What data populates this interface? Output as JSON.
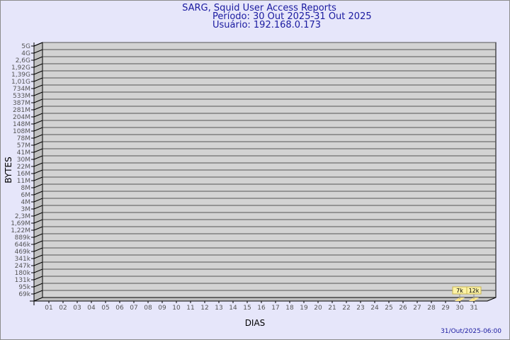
{
  "chart_data": {
    "type": "bar",
    "title": "SARG, Squid User Access Reports",
    "subtitle_lines": [
      "Período: 30 Out 2025-31 Out 2025",
      "Usuário: 192.168.0.173"
    ],
    "xlabel": "DIAS",
    "ylabel": "BYTES",
    "y_scale": "log",
    "y_tick_labels": [
      "5G",
      "4G",
      "2,6G",
      "1,92G",
      "1,39G",
      "1,01G",
      "734M",
      "533M",
      "387M",
      "281M",
      "204M",
      "148M",
      "108M",
      "78M",
      "57M",
      "41M",
      "30M",
      "22M",
      "16M",
      "11M",
      "8M",
      "6M",
      "4M",
      "3M",
      "2,3M",
      "1,69M",
      "1,22M",
      "889k",
      "646k",
      "469k",
      "341k",
      "247k",
      "180k",
      "131k",
      "95k",
      "69k"
    ],
    "categories": [
      "01",
      "02",
      "03",
      "04",
      "05",
      "06",
      "07",
      "08",
      "09",
      "10",
      "11",
      "12",
      "13",
      "14",
      "15",
      "16",
      "17",
      "18",
      "19",
      "20",
      "21",
      "22",
      "23",
      "24",
      "25",
      "26",
      "27",
      "28",
      "29",
      "30",
      "31"
    ],
    "values": [
      null,
      null,
      null,
      null,
      null,
      null,
      null,
      null,
      null,
      null,
      null,
      null,
      null,
      null,
      null,
      null,
      null,
      null,
      null,
      null,
      null,
      null,
      null,
      null,
      null,
      null,
      null,
      null,
      null,
      7000,
      12000
    ],
    "data_labels": {
      "30": "7k",
      "31": "12k"
    },
    "grid": true,
    "colors": {
      "background": "#e6e6fa",
      "plot": "#d3d3d3",
      "bar": "#fde68a",
      "title": "#1a1aa0"
    },
    "footer": "31/Out/2025-06:00"
  }
}
